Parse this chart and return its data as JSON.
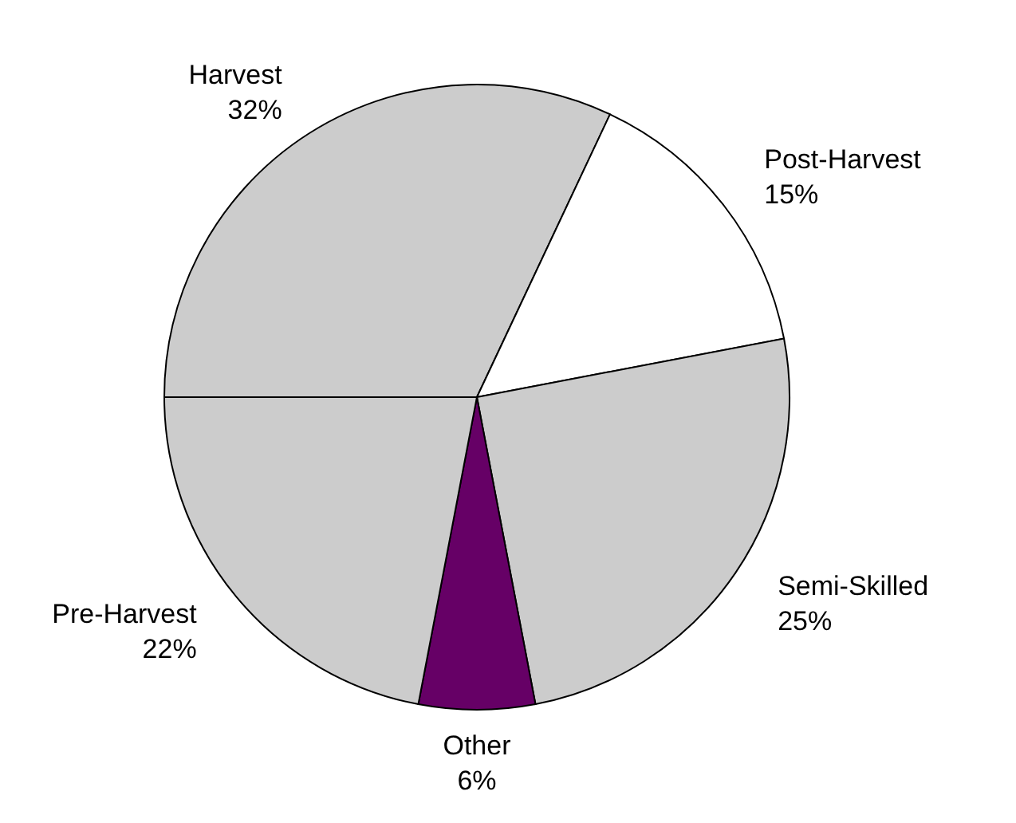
{
  "chart_data": {
    "type": "pie",
    "categories": [
      "Harvest",
      "Post-Harvest",
      "Semi-Skilled",
      "Other",
      "Pre-Harvest"
    ],
    "values": [
      32,
      15,
      25,
      6,
      22
    ],
    "colors": [
      "#cccccc",
      "#ffffff",
      "#cccccc",
      "#660066",
      "#cccccc"
    ],
    "value_labels": [
      "32%",
      "15%",
      "25%",
      "6%",
      "22%"
    ],
    "legend": false
  }
}
